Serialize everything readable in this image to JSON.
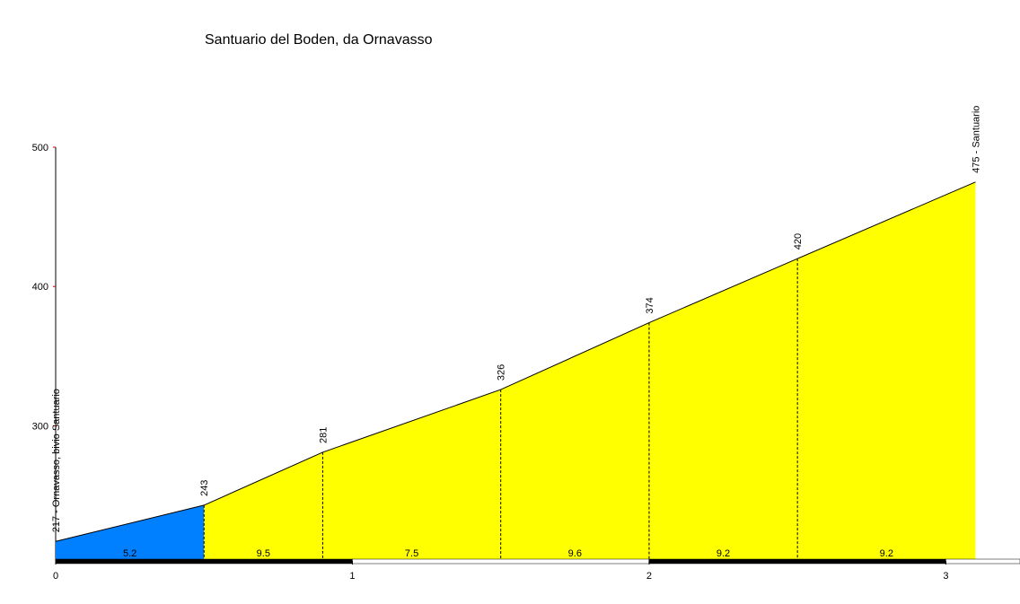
{
  "chart_data": {
    "type": "area",
    "title": "Santuario del Boden, da Ornavasso",
    "x": [
      0,
      0.5,
      0.9,
      1.5,
      2,
      2.5,
      3.1
    ],
    "values": [
      217,
      243,
      281,
      326,
      374,
      420,
      475
    ],
    "value_labels": [
      "217 - Ornavasso, bivio Santuario",
      "243",
      "281",
      "326",
      "374",
      "420",
      "475 - Santuario"
    ],
    "segment_gradients": [
      5.2,
      9.5,
      7.5,
      9.6,
      9.2,
      9.2
    ],
    "segment_colors": [
      "#0080ff",
      "#ffff00",
      "#ffff00",
      "#ffff00",
      "#ffff00",
      "#ffff00"
    ],
    "xlim": [
      0,
      3.25
    ],
    "ylim": [
      203,
      500
    ],
    "xticks": [
      0,
      1,
      2,
      3
    ],
    "yticks": [
      300,
      400,
      500
    ]
  }
}
